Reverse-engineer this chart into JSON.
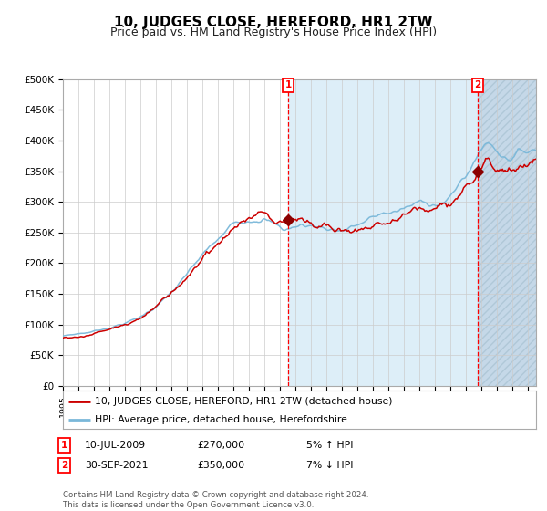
{
  "title": "10, JUDGES CLOSE, HEREFORD, HR1 2TW",
  "subtitle": "Price paid vs. HM Land Registry's House Price Index (HPI)",
  "title_fontsize": 11,
  "subtitle_fontsize": 9,
  "ylim": [
    0,
    500000
  ],
  "yticks": [
    0,
    50000,
    100000,
    150000,
    200000,
    250000,
    300000,
    350000,
    400000,
    450000,
    500000
  ],
  "ytick_labels": [
    "£0",
    "£50K",
    "£100K",
    "£150K",
    "£200K",
    "£250K",
    "£300K",
    "£350K",
    "£400K",
    "£450K",
    "£500K"
  ],
  "year_start": 1995.0,
  "year_end": 2025.5,
  "transaction1_date": 2009.53,
  "transaction1_price": 270000,
  "transaction2_date": 2021.75,
  "transaction2_price": 350000,
  "hpi_color": "#7ab8d9",
  "price_color": "#cc0000",
  "marker_color": "#8b0000",
  "shading_color": "#ddeef8",
  "hatch_color": "#c5d8e8",
  "grid_color": "#cccccc",
  "legend_entry1": "10, JUDGES CLOSE, HEREFORD, HR1 2TW (detached house)",
  "legend_entry2": "HPI: Average price, detached house, Herefordshire",
  "note1_date": "10-JUL-2009",
  "note1_price": "£270,000",
  "note1_hpi": "5% ↑ HPI",
  "note2_date": "30-SEP-2021",
  "note2_price": "£350,000",
  "note2_hpi": "7% ↓ HPI",
  "footer": "Contains HM Land Registry data © Crown copyright and database right 2024.\nThis data is licensed under the Open Government Licence v3.0."
}
